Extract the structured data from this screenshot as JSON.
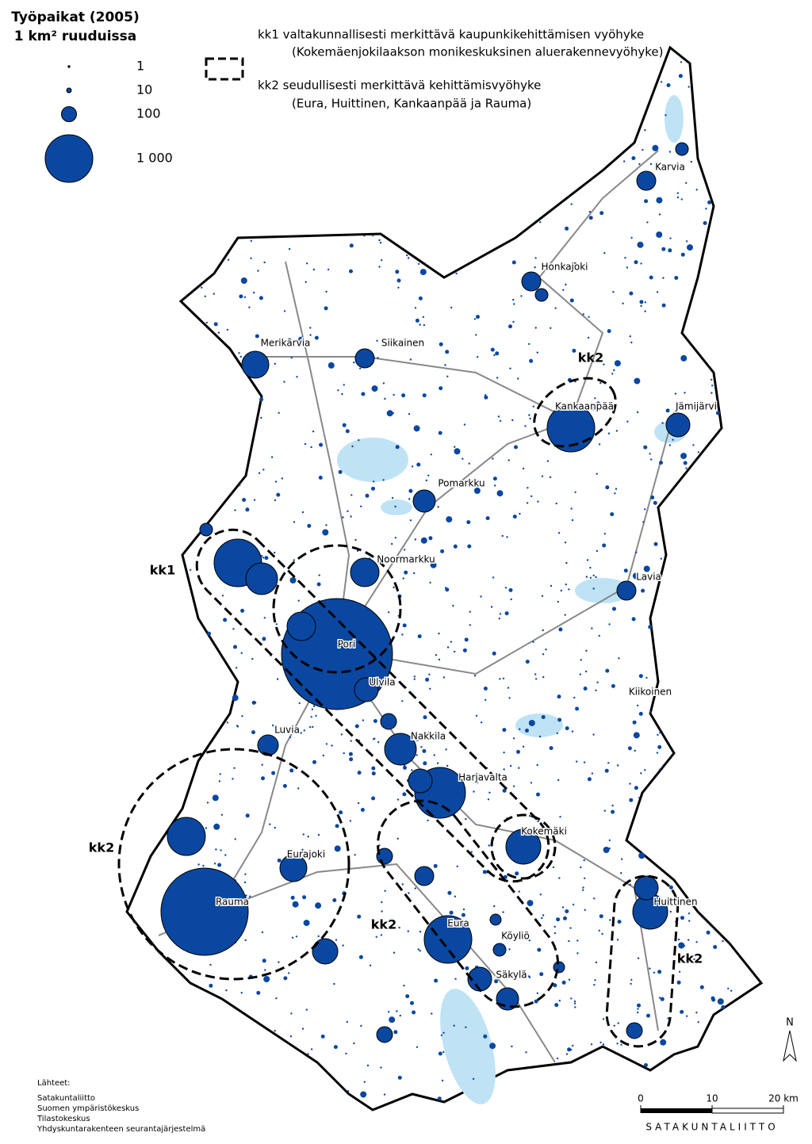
{
  "legend": {
    "title": "Työpaikat (2005)",
    "subtitle": "1 km² ruuduissa",
    "items": [
      1,
      10,
      100,
      {
        "value": 1000,
        "label": "1 000"
      }
    ]
  },
  "zones": {
    "kk1": "kk1  valtakunnallisesti merkittävä kaupunkikehittämisen vyöhyke",
    "kk1_note": "(Kokemäenjokilaakson monikeskuksinen aluerakennevyöhyke)",
    "kk2": "kk2  seudullisesti merkittävä kehittämisvyöhyke",
    "kk2_note": "(Eura, Huittinen, Kankaanpää ja Rauma)"
  },
  "zone_labels": [
    "kk1",
    "kk2",
    "kk2",
    "kk2",
    "kk2"
  ],
  "places": [
    "Karvia",
    "Honkajoki",
    "Merikarvia",
    "Siikainen",
    "Kankaanpää",
    "Jämijärvi",
    "Pomarkku",
    "Noormarkku",
    "Lavia",
    "Pori",
    "Ulvila",
    "Kiikoinen",
    "Luvia",
    "Nakkila",
    "Harjavalta",
    "Kokemäki",
    "Eurajoki",
    "Rauma",
    "Huittinen",
    "Eura",
    "Köyliö",
    "Säkylä"
  ],
  "sources": {
    "heading": "Lähteet:",
    "items": [
      "Satakuntaliitto",
      "Suomen ympäristökeskus",
      "Tilastokeskus",
      "Yhdyskuntarakenteen seurantajärjestelmä"
    ]
  },
  "scale": {
    "ticks": [
      0,
      10,
      {
        "value": 20,
        "label": "20 km"
      }
    ],
    "credit": "SATAKUNTALIITTO"
  },
  "north": "N"
}
